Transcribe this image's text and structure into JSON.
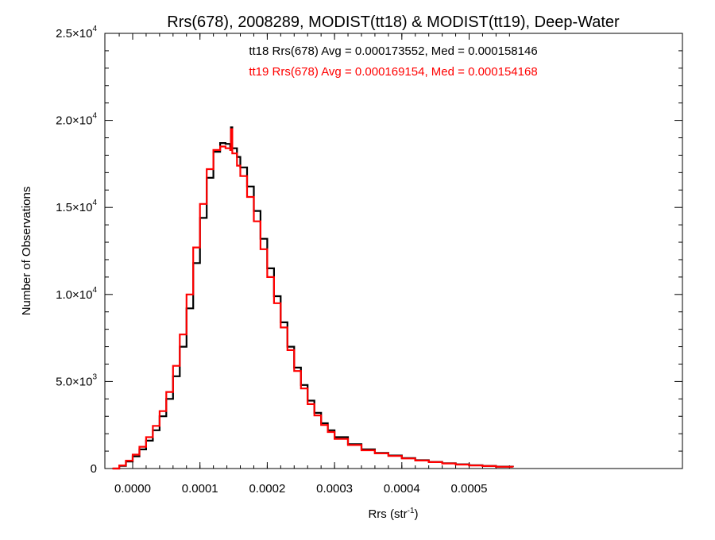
{
  "chart_data": {
    "type": "line",
    "title": "Rrs(678), 2008289, MODIST(tt18) & MODIST(tt19), Deep-Water",
    "xlabel": "Rrs (str",
    "xlabel_sup": "-1",
    "xlabel_end": ")",
    "ylabel": "Number of Observations",
    "xlim": [
      -3e-05,
      0.000565
    ],
    "ylim": [
      0,
      25000
    ],
    "x_ticks": [
      0.0,
      0.0001,
      0.0002,
      0.0003,
      0.0004,
      0.0005
    ],
    "x_tick_labels": [
      "0.0000",
      "0.0001",
      "0.0002",
      "0.0003",
      "0.0004",
      "0.0005"
    ],
    "y_ticks": [
      0,
      5000,
      10000,
      15000,
      20000,
      25000
    ],
    "y_tick_labels": [
      {
        "mantissa": "0",
        "exp": ""
      },
      {
        "mantissa": "5.0×10",
        "exp": "3"
      },
      {
        "mantissa": "1.0×10",
        "exp": "4"
      },
      {
        "mantissa": "1.5×10",
        "exp": "4"
      },
      {
        "mantissa": "2.0×10",
        "exp": "4"
      },
      {
        "mantissa": "2.5×10",
        "exp": "4"
      }
    ],
    "grid": false,
    "series": [
      {
        "color": "#000000",
        "annotation": "tt18 Rrs(678) Avg = 0.000173552, Med = 0.000158146",
        "points": [
          [
            -3e-05,
            0
          ],
          [
            -2e-05,
            150
          ],
          [
            -1e-05,
            400
          ],
          [
            0.0,
            700
          ],
          [
            1e-05,
            1100
          ],
          [
            2e-05,
            1600
          ],
          [
            3e-05,
            2200
          ],
          [
            4e-05,
            3000
          ],
          [
            5e-05,
            4000
          ],
          [
            6e-05,
            5300
          ],
          [
            7e-05,
            7000
          ],
          [
            8e-05,
            9200
          ],
          [
            9e-05,
            11800
          ],
          [
            0.0001,
            14400
          ],
          [
            0.00011,
            16700
          ],
          [
            0.00012,
            18200
          ],
          [
            0.00013,
            18700
          ],
          [
            0.000138,
            18650
          ],
          [
            0.000145,
            18500
          ],
          [
            0.000146,
            19600
          ],
          [
            0.000148,
            18400
          ],
          [
            0.000155,
            17900
          ],
          [
            0.00016,
            17300
          ],
          [
            0.00017,
            16200
          ],
          [
            0.00018,
            14800
          ],
          [
            0.00019,
            13200
          ],
          [
            0.0002,
            11500
          ],
          [
            0.00021,
            9900
          ],
          [
            0.00022,
            8400
          ],
          [
            0.00023,
            7000
          ],
          [
            0.00024,
            5800
          ],
          [
            0.00025,
            4800
          ],
          [
            0.00026,
            3900
          ],
          [
            0.00027,
            3200
          ],
          [
            0.00028,
            2600
          ],
          [
            0.00029,
            2200
          ],
          [
            0.0003,
            1800
          ],
          [
            0.00032,
            1400
          ],
          [
            0.00034,
            1100
          ],
          [
            0.00036,
            900
          ],
          [
            0.00038,
            750
          ],
          [
            0.0004,
            600
          ],
          [
            0.00042,
            480
          ],
          [
            0.00044,
            380
          ],
          [
            0.00046,
            300
          ],
          [
            0.00048,
            240
          ],
          [
            0.0005,
            190
          ],
          [
            0.00052,
            150
          ],
          [
            0.00054,
            110
          ],
          [
            0.000565,
            80
          ]
        ]
      },
      {
        "color": "#ff0000",
        "annotation": "tt19 Rrs(678) Avg = 0.000169154, Med = 0.000154168",
        "points": [
          [
            -3e-05,
            0
          ],
          [
            -2e-05,
            180
          ],
          [
            -1e-05,
            450
          ],
          [
            0.0,
            800
          ],
          [
            1e-05,
            1250
          ],
          [
            2e-05,
            1800
          ],
          [
            3e-05,
            2450
          ],
          [
            4e-05,
            3300
          ],
          [
            5e-05,
            4400
          ],
          [
            6e-05,
            5900
          ],
          [
            7e-05,
            7700
          ],
          [
            8e-05,
            10000
          ],
          [
            9e-05,
            12700
          ],
          [
            0.0001,
            15200
          ],
          [
            0.00011,
            17200
          ],
          [
            0.00012,
            18300
          ],
          [
            0.00013,
            18500
          ],
          [
            0.000138,
            18400
          ],
          [
            0.000145,
            18300
          ],
          [
            0.000146,
            19500
          ],
          [
            0.000148,
            18100
          ],
          [
            0.000155,
            17400
          ],
          [
            0.00016,
            16800
          ],
          [
            0.00017,
            15600
          ],
          [
            0.00018,
            14200
          ],
          [
            0.00019,
            12600
          ],
          [
            0.0002,
            11000
          ],
          [
            0.00021,
            9500
          ],
          [
            0.00022,
            8100
          ],
          [
            0.00023,
            6800
          ],
          [
            0.00024,
            5600
          ],
          [
            0.00025,
            4600
          ],
          [
            0.00026,
            3700
          ],
          [
            0.00027,
            3050
          ],
          [
            0.00028,
            2500
          ],
          [
            0.00029,
            2100
          ],
          [
            0.0003,
            1700
          ],
          [
            0.00032,
            1350
          ],
          [
            0.00034,
            1050
          ],
          [
            0.00036,
            870
          ],
          [
            0.00038,
            720
          ],
          [
            0.0004,
            580
          ],
          [
            0.00042,
            460
          ],
          [
            0.00044,
            370
          ],
          [
            0.00046,
            290
          ],
          [
            0.00048,
            230
          ],
          [
            0.0005,
            180
          ],
          [
            0.00052,
            140
          ],
          [
            0.00054,
            100
          ],
          [
            0.000565,
            75
          ]
        ]
      }
    ]
  }
}
